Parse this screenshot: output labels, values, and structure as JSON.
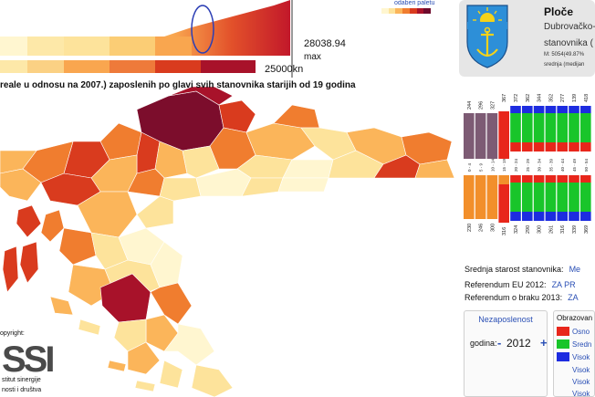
{
  "legend": {
    "max_value": "28038.94",
    "max_label": "max",
    "min_value": "25000kn",
    "palette_link": "odaberi paletu",
    "palette_colors": [
      "#fff6d0",
      "#fde39b",
      "#fbb55a",
      "#f07d2f",
      "#d93b1e",
      "#a8122a",
      "#6e0a2c"
    ]
  },
  "map": {
    "title": "reale u odnosu na 2007.) zaposlenih po glavi svih stanovnika starijih od 19 godina"
  },
  "place": {
    "name": "Ploče",
    "county": "Dubrovačko-",
    "pop_label": "stanovnika (",
    "stat1": "M: 5054(49.87%",
    "stat2": "srednja (medijan"
  },
  "pyramid": {
    "top_labels": [
      "244",
      "296",
      "327",
      "367",
      "372",
      "362",
      "344",
      "352",
      "277",
      "139",
      "418"
    ],
    "top_groups": [
      "0 - 4",
      "5 - 9",
      "10 - 14",
      "15 - 19",
      "20 - 24",
      "25 - 29",
      "30 - 34",
      "35 - 39",
      "40 - 44",
      "45 - 49",
      "50 - 54"
    ],
    "bottom_labels": [
      "230",
      "246",
      "300",
      "316",
      "324",
      "290",
      "300",
      "261",
      "316",
      "339",
      "369"
    ]
  },
  "rows": [
    {
      "label": "Srednja starost stanovnika:",
      "value": "Me"
    },
    {
      "label": "Referendum EU 2012:",
      "value": "ZA  PR"
    },
    {
      "label": "Referendum o braku 2013:",
      "value": "ZA"
    }
  ],
  "unemployment": {
    "title": "Nezaposlenost",
    "year_label": "godina:",
    "minus": "-",
    "year": "2012",
    "plus": "+"
  },
  "education": {
    "title": "Obrazovan",
    "items": [
      {
        "label": "Osno",
        "color": "#e8261b"
      },
      {
        "label": "Sredn",
        "color": "#19c52a"
      },
      {
        "label": "Visok",
        "color": "#1d2ce0"
      }
    ],
    "plain_items": [
      "Visok",
      "Visok",
      "Visok"
    ]
  },
  "copyright": {
    "label": "opyright:",
    "logo_text": "SSI",
    "inst_line1": "stitut sinergije",
    "inst_line2": "nosti i društva"
  }
}
